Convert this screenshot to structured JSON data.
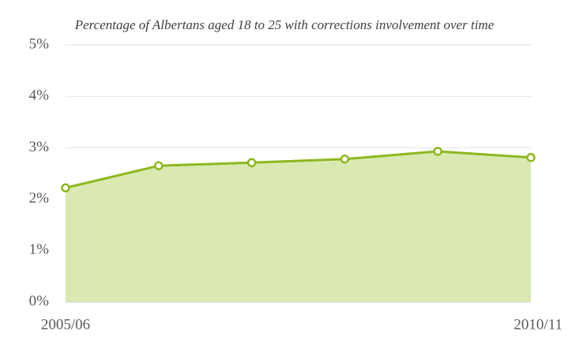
{
  "chart_data": {
    "type": "area",
    "title": "Percentage of Albertans aged 18 to 25 with corrections involvement over time",
    "categories": [
      "2005/06",
      null,
      null,
      null,
      null,
      "2010/11"
    ],
    "values": [
      2.22,
      2.65,
      2.71,
      2.78,
      2.93,
      2.81
    ],
    "color": "#8db81f",
    "fill": "#d9e9b1",
    "ylim": [
      0,
      5
    ],
    "yticks": [
      {
        "value": 0,
        "label": "0%"
      },
      {
        "value": 1,
        "label": "1%"
      },
      {
        "value": 2,
        "label": "2%"
      },
      {
        "value": 3,
        "label": "3%"
      },
      {
        "value": 4,
        "label": "4%"
      },
      {
        "value": 5,
        "label": "5%"
      }
    ],
    "grid": true,
    "markers": true
  }
}
